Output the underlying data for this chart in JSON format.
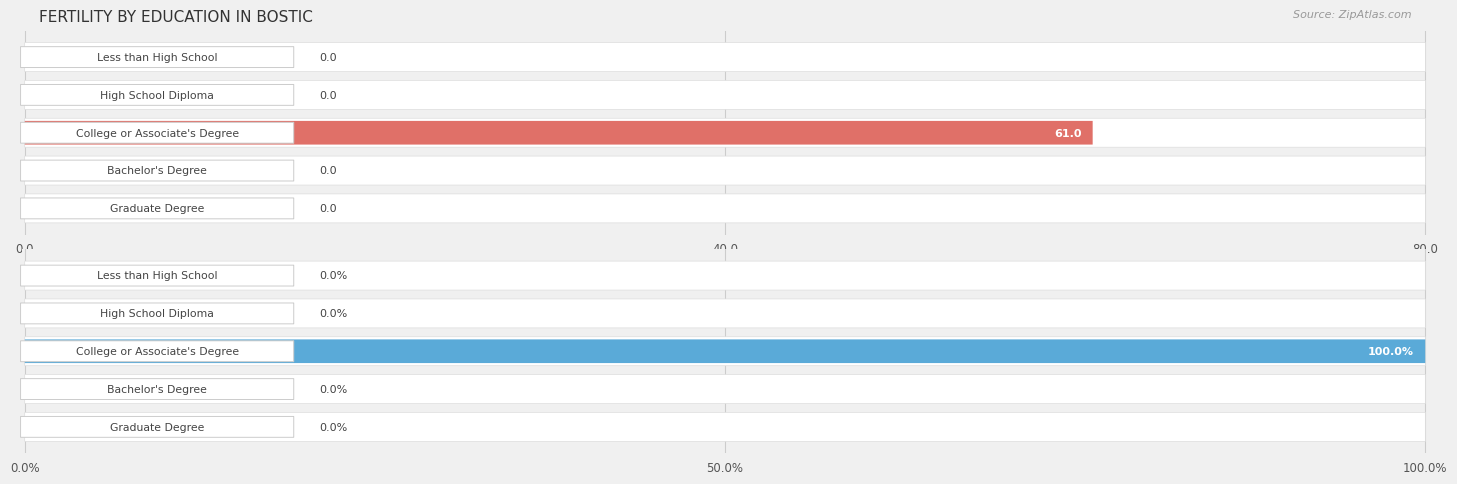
{
  "title": "FERTILITY BY EDUCATION IN BOSTIC",
  "source_text": "Source: ZipAtlas.com",
  "top_chart": {
    "categories": [
      "Less than High School",
      "High School Diploma",
      "College or Associate's Degree",
      "Bachelor's Degree",
      "Graduate Degree"
    ],
    "values": [
      0.0,
      0.0,
      61.0,
      0.0,
      0.0
    ],
    "bar_color_normal": "#f2aeaa",
    "bar_color_highlight": "#e07068",
    "highlight_index": 2,
    "xlim": [
      0,
      80.0
    ],
    "xticks": [
      0.0,
      40.0,
      80.0
    ],
    "xtick_labels": [
      "0.0",
      "40.0",
      "80.0"
    ],
    "value_label_suffix": ""
  },
  "bottom_chart": {
    "categories": [
      "Less than High School",
      "High School Diploma",
      "College or Associate's Degree",
      "Bachelor's Degree",
      "Graduate Degree"
    ],
    "values": [
      0.0,
      0.0,
      100.0,
      0.0,
      0.0
    ],
    "bar_color_normal": "#9ec8e8",
    "bar_color_highlight": "#5aaad8",
    "highlight_index": 2,
    "xlim": [
      0,
      100.0
    ],
    "xticks": [
      0.0,
      50.0,
      100.0
    ],
    "xtick_labels": [
      "0.0%",
      "50.0%",
      "100.0%"
    ],
    "value_label_suffix": "%"
  },
  "label_text_color": "#444444",
  "background_color": "#f0f0f0",
  "row_bg_color": "#ffffff",
  "title_fontsize": 11,
  "source_fontsize": 8,
  "label_fontsize": 7.8,
  "value_fontsize": 8.0
}
